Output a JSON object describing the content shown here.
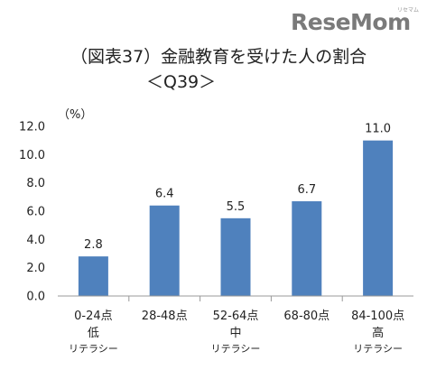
{
  "logo": {
    "text": "ReseMom",
    "kana": "リセマム"
  },
  "chart_data": {
    "type": "bar",
    "title": "（図表37）金融教育を受けた人の割合",
    "subtitle": "＜Q39＞",
    "unit_label": "（%）",
    "categories": [
      {
        "line1": "0-24点",
        "line2": "低",
        "line3": "リテラシー"
      },
      {
        "line1": "28-48点",
        "line2": "",
        "line3": ""
      },
      {
        "line1": "52-64点",
        "line2": "中",
        "line3": "リテラシー"
      },
      {
        "line1": "68-80点",
        "line2": "",
        "line3": ""
      },
      {
        "line1": "84-100点",
        "line2": "高",
        "line3": "リテラシー"
      }
    ],
    "values": [
      2.8,
      6.4,
      5.5,
      6.7,
      11.0
    ],
    "value_labels": [
      "2.8",
      "6.4",
      "5.5",
      "6.7",
      "11.0"
    ],
    "ylim": [
      0,
      12
    ],
    "yticks": [
      "0.0",
      "2.0",
      "4.0",
      "6.0",
      "8.0",
      "10.0",
      "12.0"
    ],
    "bar_color": "#4f81bd",
    "grid": false
  }
}
